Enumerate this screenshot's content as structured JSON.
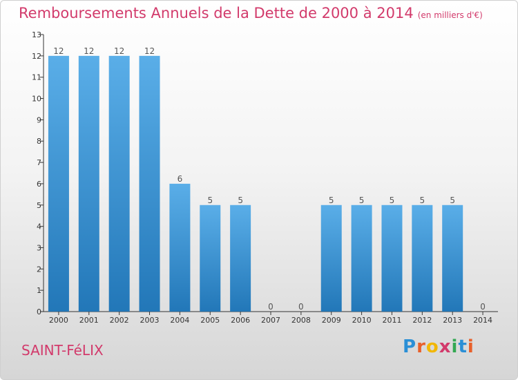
{
  "header": {
    "title": "Remboursements Annuels de la Dette de 2000 à 2014",
    "unit": "(en milliers d'€)"
  },
  "footer": {
    "commune": "SAINT-FéLIX",
    "logo": "Proxiti"
  },
  "colors": {
    "bar_top": "#5aaee8",
    "bar_bottom": "#2277b8",
    "accent": "#d23a6b"
  },
  "chart_data": {
    "type": "bar",
    "title": "Remboursements Annuels de la Dette de 2000 à 2014",
    "categories": [
      "2000",
      "2001",
      "2002",
      "2003",
      "2004",
      "2005",
      "2006",
      "2007",
      "2008",
      "2009",
      "2010",
      "2011",
      "2012",
      "2013",
      "2014"
    ],
    "values": [
      12,
      12,
      12,
      12,
      6,
      5,
      5,
      0,
      0,
      5,
      5,
      5,
      5,
      5,
      0
    ],
    "ylim": [
      0,
      13
    ],
    "yticks": [
      0,
      1,
      2,
      3,
      4,
      5,
      6,
      7,
      8,
      9,
      10,
      11,
      12,
      13
    ],
    "grid": false,
    "legend": "none"
  }
}
